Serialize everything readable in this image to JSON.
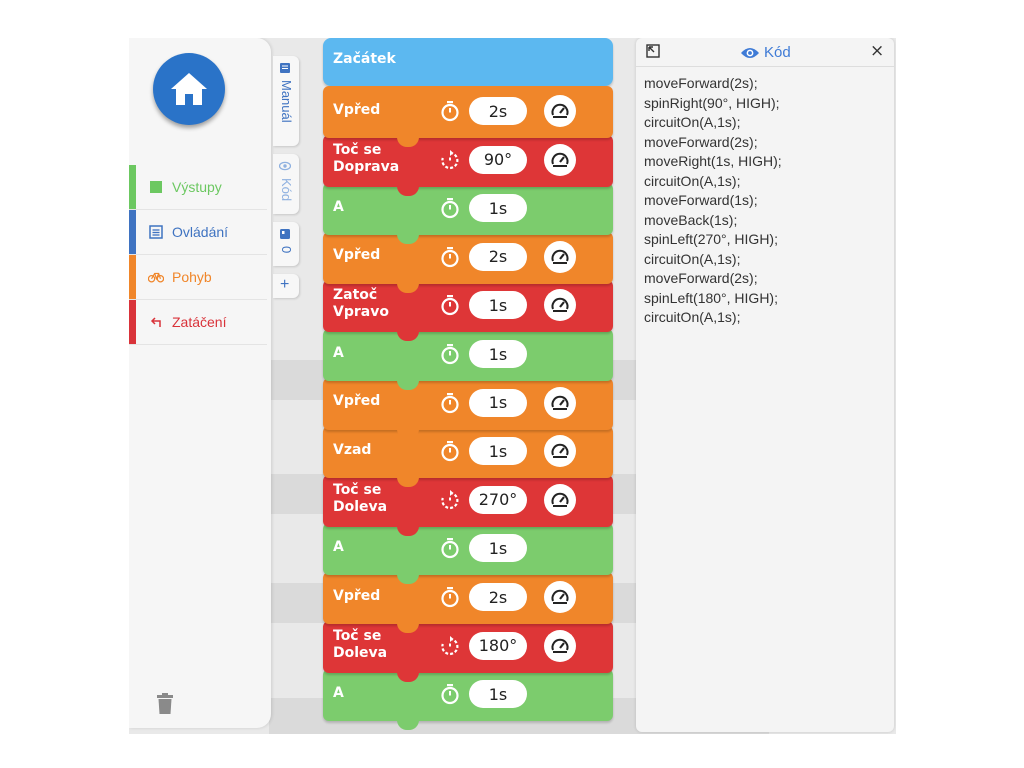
{
  "sidebar": {
    "categories": [
      {
        "label": "Výstupy",
        "color": "#6cc861"
      },
      {
        "label": "Ovládání",
        "color": "#3f73c1"
      },
      {
        "label": "Pohyb",
        "color": "#f0862a"
      },
      {
        "label": "Zatáčení",
        "color": "#d9333a"
      }
    ]
  },
  "tabs": {
    "manual": "Manuál",
    "kod": "Kód",
    "zero": "0",
    "add": "+"
  },
  "program": {
    "start_label": "Začátek",
    "blocks": [
      {
        "label": "Vpřed",
        "value": "2s",
        "type": "move"
      },
      {
        "label": "Toč se\nDoprava",
        "value": "90°",
        "type": "turn"
      },
      {
        "label": "A",
        "value": "1s",
        "type": "output"
      },
      {
        "label": "Vpřed",
        "value": "2s",
        "type": "move"
      },
      {
        "label": "Zatoč\nVpravo",
        "value": "1s",
        "type": "turn"
      },
      {
        "label": "A",
        "value": "1s",
        "type": "output"
      },
      {
        "label": "Vpřed",
        "value": "1s",
        "type": "move"
      },
      {
        "label": "Vzad",
        "value": "1s",
        "type": "move"
      },
      {
        "label": "Toč se\nDoleva",
        "value": "270°",
        "type": "turn"
      },
      {
        "label": "A",
        "value": "1s",
        "type": "output"
      },
      {
        "label": "Vpřed",
        "value": "2s",
        "type": "move"
      },
      {
        "label": "Toč se\nDoleva",
        "value": "180°",
        "type": "turn"
      },
      {
        "label": "A",
        "value": "1s",
        "type": "output"
      }
    ]
  },
  "code_panel": {
    "title": "Kód",
    "close": "×",
    "lines": [
      "moveForward(2s);",
      "spinRight(90°, HIGH);",
      "circuitOn(A,1s);",
      "moveForward(2s);",
      "moveRight(1s, HIGH);",
      "circuitOn(A,1s);",
      "moveForward(1s);",
      "moveBack(1s);",
      "spinLeft(270°, HIGH);",
      "circuitOn(A,1s);",
      "moveForward(2s);",
      "spinLeft(180°, HIGH);",
      "circuitOn(A,1s);"
    ]
  },
  "colors": {
    "move": "#f0862a",
    "turn": "#de3637",
    "output": "#7ccc6d",
    "start": "#5cb8f0",
    "accent": "#3f7bd6"
  },
  "icons": {
    "home": "home-icon",
    "trash": "trash-icon",
    "timer": "stopwatch-icon",
    "rotate": "rotate-icon",
    "speed": "speedometer-icon",
    "eye": "eye-icon",
    "expand": "expand-icon",
    "close": "close-icon"
  }
}
